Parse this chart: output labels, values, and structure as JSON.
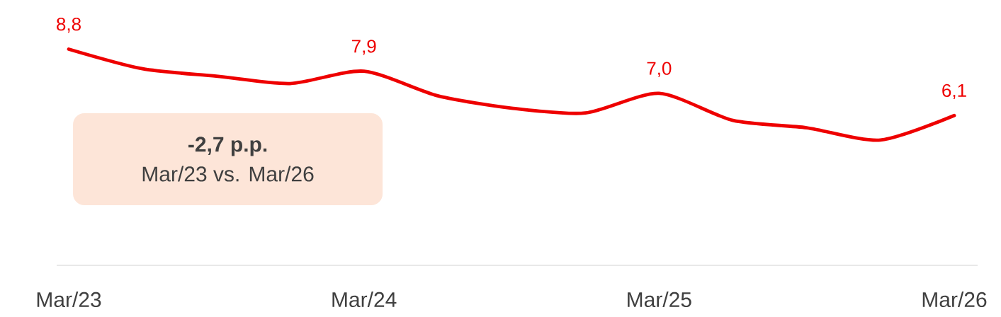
{
  "chart_data": {
    "type": "line",
    "categories": [
      "Mar/23",
      null,
      null,
      null,
      "Mar/24",
      null,
      null,
      null,
      "Mar/25",
      null,
      null,
      null,
      "Mar/26"
    ],
    "series": [
      {
        "color": "#ee0000",
        "values": [
          8.8,
          8.0,
          7.7,
          7.4,
          7.9,
          6.9,
          6.4,
          6.2,
          7.0,
          5.9,
          5.6,
          5.1,
          6.1
        ],
        "value_labels": [
          "8,8",
          null,
          null,
          null,
          "7,9",
          null,
          null,
          null,
          "7,0",
          null,
          null,
          null,
          "6,1"
        ]
      }
    ],
    "tick_labels": "x",
    "annotations": [
      "-2,7 p.p.",
      "Mar/23 vs. Mar/26"
    ]
  }
}
